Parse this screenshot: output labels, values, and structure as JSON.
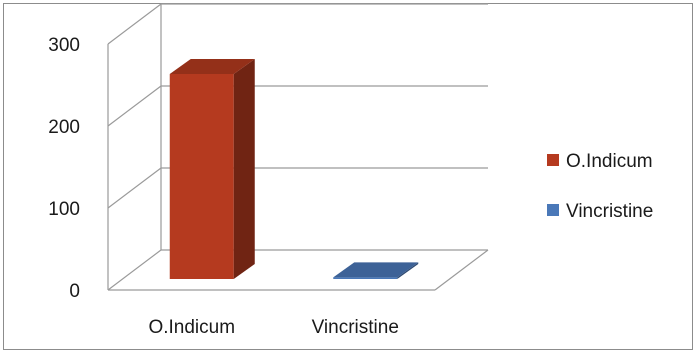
{
  "chart_data": {
    "type": "bar",
    "style": "3d",
    "categories": [
      "O.Indicum",
      "Vincristine"
    ],
    "series": [
      {
        "name": "O.Indicum",
        "color": "#b53a1f",
        "values": [
          250,
          null
        ]
      },
      {
        "name": "Vincristine",
        "color": "#4a78b8",
        "values": [
          null,
          2
        ]
      }
    ],
    "yticks": [
      0,
      100,
      200,
      300
    ],
    "ylim": [
      0,
      300
    ],
    "grid": true,
    "legend_position": "right"
  }
}
